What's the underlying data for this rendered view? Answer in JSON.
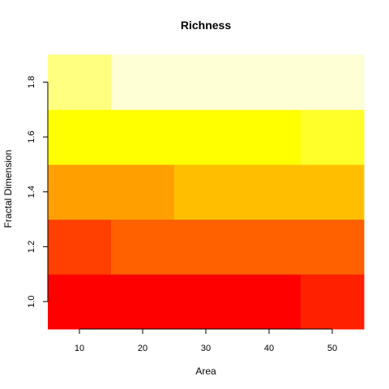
{
  "chart_data": {
    "type": "heatmap",
    "title": "Richness",
    "xlabel": "Area",
    "ylabel": "Fractal Dimension",
    "xlim": [
      5,
      55
    ],
    "ylim": [
      0.9,
      1.925
    ],
    "x_ticks": [
      10,
      20,
      30,
      40,
      50
    ],
    "x_tick_labels": [
      "10",
      "20",
      "30",
      "40",
      "50"
    ],
    "y_ticks": [
      1.0,
      1.2,
      1.4,
      1.6,
      1.8
    ],
    "y_tick_labels": [
      "1.0",
      "1.2",
      "1.4",
      "1.6",
      "1.8"
    ],
    "x_categories": [
      10,
      20,
      30,
      40,
      50
    ],
    "y_categories": [
      1.0,
      1.2,
      1.4,
      1.6,
      1.8
    ],
    "color_scale": "heat (red = low, white = high)",
    "cells": [
      {
        "row": 1.0,
        "x_from": 5,
        "x_to": 45,
        "color": "#ff0000"
      },
      {
        "row": 1.0,
        "x_from": 45,
        "x_to": 55,
        "color": "#ff2000"
      },
      {
        "row": 1.2,
        "x_from": 5,
        "x_to": 15,
        "color": "#ff4000"
      },
      {
        "row": 1.2,
        "x_from": 15,
        "x_to": 55,
        "color": "#ff6000"
      },
      {
        "row": 1.4,
        "x_from": 5,
        "x_to": 25,
        "color": "#ffa000"
      },
      {
        "row": 1.4,
        "x_from": 25,
        "x_to": 55,
        "color": "#ffbf00"
      },
      {
        "row": 1.6,
        "x_from": 5,
        "x_to": 45,
        "color": "#ffff00"
      },
      {
        "row": 1.6,
        "x_from": 45,
        "x_to": 55,
        "color": "#ffff2a"
      },
      {
        "row": 1.8,
        "x_from": 5,
        "x_to": 15,
        "color": "#ffff80"
      },
      {
        "row": 1.8,
        "x_from": 15,
        "x_to": 55,
        "color": "#ffffd5"
      }
    ]
  }
}
